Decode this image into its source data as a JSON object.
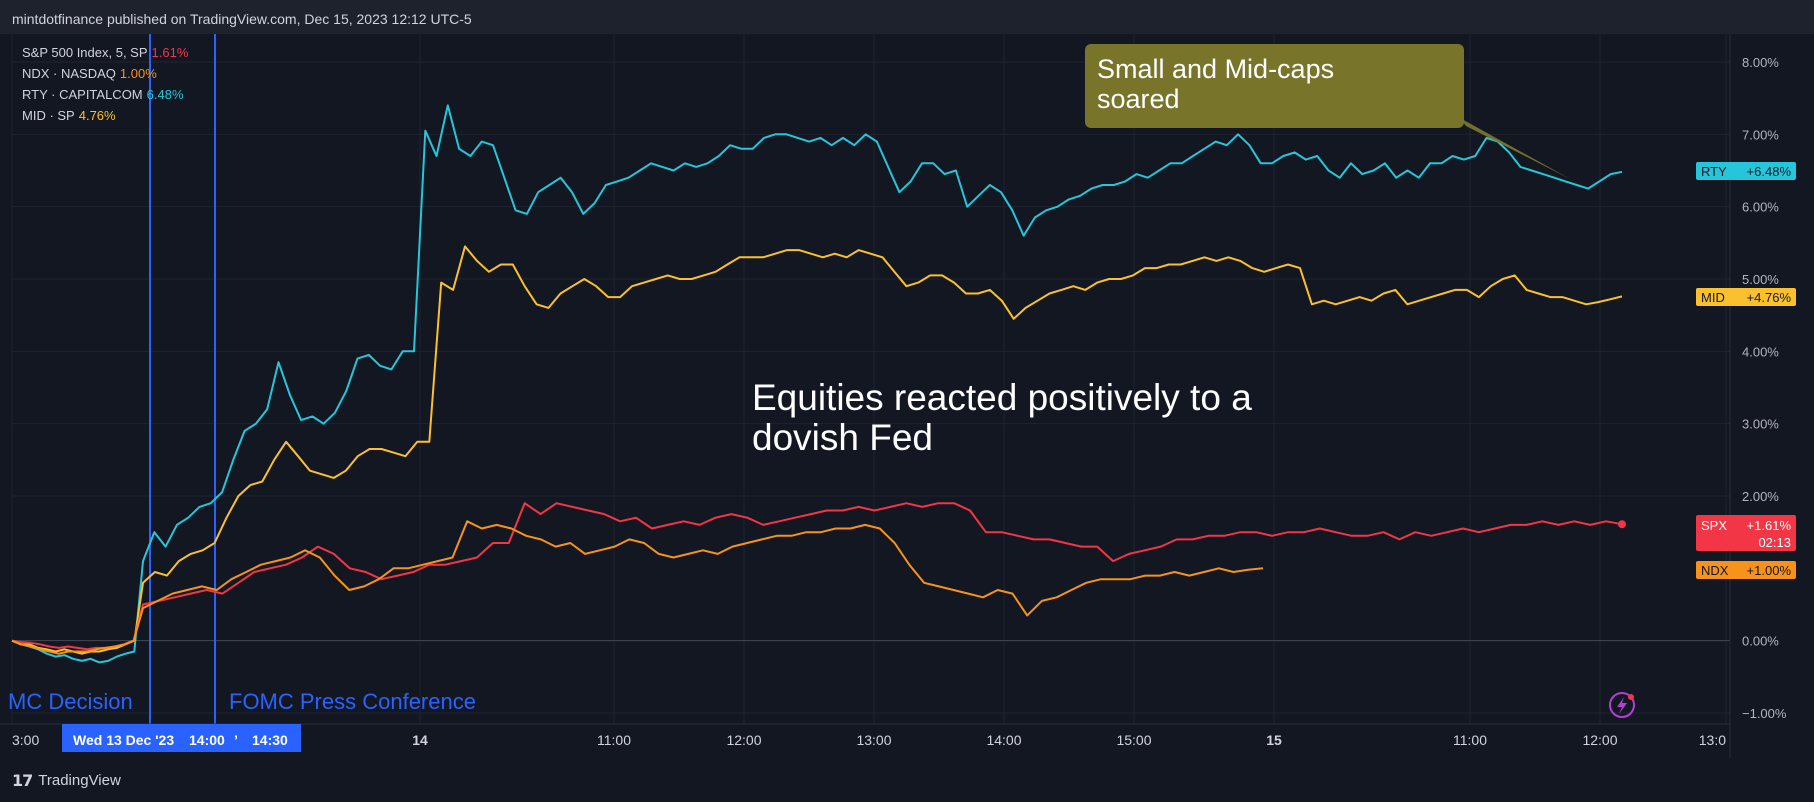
{
  "header": {
    "text": "mintdotfinance published on TradingView.com, Dec 15, 2023 12:12 UTC-5"
  },
  "footer": {
    "logo": "17",
    "name": "TradingView"
  },
  "legend": [
    {
      "label": "S&P 500 Index, 5, SP",
      "value": "1.61%",
      "color": "#f23645"
    },
    {
      "label": "NDX · NASDAQ",
      "value": "1.00%",
      "color": "#f7931a"
    },
    {
      "label": "RTY · CAPITALCOM",
      "value": "6.48%",
      "color": "#26c6da"
    },
    {
      "label": "MID · SP",
      "value": "4.76%",
      "color": "#fbc02d"
    }
  ],
  "annotations": {
    "soared_line1": "Small and Mid-caps",
    "soared_line2": "soared",
    "equities_line1": "Equities reacted positively to a",
    "equities_line2": "dovish Fed",
    "fomc_decision": "MC Decision",
    "fomc_press": "FOMC Press Conference"
  },
  "price_axis": {
    "ticks": [
      "8.00%",
      "7.00%",
      "6.00%",
      "5.00%",
      "4.00%",
      "3.00%",
      "2.00%",
      "0.00%",
      "−1.00%"
    ],
    "badges": {
      "rty": {
        "name": "RTY",
        "value": "+6.48%",
        "color": "#26c6da"
      },
      "mid": {
        "name": "MID",
        "value": "+4.76%",
        "color": "#fbc02d"
      },
      "spx": {
        "name": "SPX",
        "value": "+1.61%",
        "countdown": "02:13",
        "color": "#f23645"
      },
      "ndx": {
        "name": "NDX",
        "value": "+1.00%",
        "color": "#f7931a"
      }
    }
  },
  "time_axis": {
    "ticks": [
      "3:00",
      "14",
      "11:00",
      "12:00",
      "13:00",
      "14:00",
      "15:00",
      "15",
      "11:00",
      "12:00",
      "13:0"
    ],
    "bold_ticks": [
      "14",
      "15"
    ],
    "crosshair_date": "Wed 13 Dec '23",
    "crosshair_t1": "14:00",
    "crosshair_sep": "’",
    "crosshair_t2": "14:30"
  },
  "chart_data": {
    "type": "line",
    "ylabel": "",
    "ylim": [
      -1,
      8
    ],
    "y_ticks": [
      8,
      7,
      6,
      5,
      4,
      3,
      2,
      0,
      -1
    ],
    "series": [
      {
        "name": "RTY",
        "color": "#26c6da",
        "values": [
          0,
          -0.05,
          -0.08,
          -0.12,
          -0.18,
          -0.22,
          -0.2,
          -0.25,
          -0.28,
          -0.25,
          -0.3,
          -0.28,
          -0.22,
          -0.18,
          -0.15,
          1.1,
          1.5,
          1.3,
          1.6,
          1.7,
          1.85,
          1.9,
          2.05,
          2.5,
          2.9,
          3.0,
          3.2,
          3.85,
          3.4,
          3.05,
          3.1,
          3.0,
          3.15,
          3.45,
          3.9,
          3.95,
          3.8,
          3.75,
          4.0,
          4.0,
          7.05,
          6.7,
          7.4,
          6.8,
          6.7,
          6.9,
          6.85,
          6.4,
          5.95,
          5.9,
          6.2,
          6.3,
          6.4,
          6.2,
          5.9,
          6.05,
          6.3,
          6.35,
          6.4,
          6.5,
          6.6,
          6.55,
          6.5,
          6.6,
          6.55,
          6.6,
          6.7,
          6.85,
          6.8,
          6.8,
          6.95,
          7.0,
          7.0,
          6.95,
          6.9,
          6.95,
          6.85,
          6.95,
          6.85,
          7.0,
          6.9,
          6.55,
          6.2,
          6.35,
          6.6,
          6.6,
          6.45,
          6.5,
          6.0,
          6.15,
          6.3,
          6.2,
          5.95,
          5.6,
          5.85,
          5.95,
          6.0,
          6.1,
          6.15,
          6.25,
          6.3,
          6.3,
          6.35,
          6.45,
          6.4,
          6.5,
          6.6,
          6.6,
          6.7,
          6.8,
          6.9,
          6.85,
          7.0,
          6.85,
          6.6,
          6.6,
          6.7,
          6.75,
          6.65,
          6.7,
          6.5,
          6.4,
          6.6,
          6.45,
          6.5,
          6.6,
          6.4,
          6.5,
          6.4,
          6.6,
          6.6,
          6.7,
          6.65,
          6.7,
          6.95,
          6.9,
          6.75,
          6.55,
          6.5,
          6.45,
          6.4,
          6.35,
          6.3,
          6.25,
          6.35,
          6.45,
          6.48
        ]
      },
      {
        "name": "MID",
        "color": "#fbc02d",
        "values": [
          0,
          -0.05,
          -0.05,
          -0.1,
          -0.12,
          -0.15,
          -0.12,
          -0.15,
          -0.18,
          -0.15,
          -0.15,
          -0.12,
          -0.1,
          -0.05,
          0.0,
          0.8,
          0.95,
          0.9,
          1.1,
          1.2,
          1.25,
          1.35,
          1.7,
          2.0,
          2.15,
          2.2,
          2.5,
          2.75,
          2.55,
          2.35,
          2.3,
          2.25,
          2.35,
          2.55,
          2.65,
          2.65,
          2.6,
          2.55,
          2.75,
          2.75,
          4.95,
          4.85,
          5.45,
          5.25,
          5.1,
          5.2,
          5.2,
          4.9,
          4.65,
          4.6,
          4.8,
          4.9,
          5.0,
          4.9,
          4.75,
          4.75,
          4.9,
          4.95,
          5.0,
          5.05,
          5.0,
          5.0,
          5.05,
          5.1,
          5.2,
          5.3,
          5.3,
          5.3,
          5.35,
          5.4,
          5.4,
          5.35,
          5.3,
          5.35,
          5.3,
          5.4,
          5.35,
          5.3,
          5.1,
          4.9,
          4.95,
          5.05,
          5.05,
          4.95,
          4.8,
          4.8,
          4.85,
          4.7,
          4.45,
          4.6,
          4.7,
          4.8,
          4.85,
          4.9,
          4.85,
          4.95,
          5.0,
          5.0,
          5.05,
          5.15,
          5.15,
          5.2,
          5.2,
          5.25,
          5.3,
          5.25,
          5.3,
          5.25,
          5.15,
          5.1,
          5.15,
          5.2,
          5.15,
          4.65,
          4.7,
          4.65,
          4.7,
          4.75,
          4.7,
          4.8,
          4.85,
          4.65,
          4.7,
          4.75,
          4.8,
          4.85,
          4.85,
          4.75,
          4.9,
          5.0,
          5.05,
          4.85,
          4.8,
          4.75,
          4.75,
          4.7,
          4.65,
          4.68,
          4.72,
          4.76
        ]
      },
      {
        "name": "SPX",
        "color": "#f23645",
        "values": [
          0,
          -0.02,
          -0.03,
          -0.05,
          -0.08,
          -0.1,
          -0.08,
          -0.1,
          -0.12,
          -0.1,
          -0.1,
          -0.08,
          -0.05,
          0.0,
          0.5,
          0.55,
          0.6,
          0.65,
          0.7,
          0.65,
          0.8,
          0.95,
          1.0,
          1.05,
          1.15,
          1.3,
          1.2,
          1.0,
          0.95,
          0.85,
          0.9,
          0.95,
          1.05,
          1.05,
          1.1,
          1.15,
          1.35,
          1.35,
          1.9,
          1.75,
          1.9,
          1.85,
          1.8,
          1.75,
          1.65,
          1.7,
          1.55,
          1.6,
          1.65,
          1.6,
          1.7,
          1.75,
          1.7,
          1.6,
          1.65,
          1.7,
          1.75,
          1.8,
          1.8,
          1.85,
          1.8,
          1.85,
          1.9,
          1.85,
          1.9,
          1.9,
          1.8,
          1.5,
          1.5,
          1.45,
          1.4,
          1.4,
          1.35,
          1.3,
          1.3,
          1.1,
          1.2,
          1.25,
          1.3,
          1.4,
          1.4,
          1.45,
          1.45,
          1.5,
          1.5,
          1.45,
          1.5,
          1.5,
          1.55,
          1.5,
          1.45,
          1.45,
          1.5,
          1.4,
          1.5,
          1.45,
          1.5,
          1.55,
          1.5,
          1.55,
          1.6,
          1.6,
          1.65,
          1.6,
          1.65,
          1.6,
          1.65,
          1.61
        ]
      },
      {
        "name": "NDX",
        "color": "#f7931a",
        "values": [
          0,
          -0.05,
          -0.08,
          -0.12,
          -0.15,
          -0.18,
          -0.15,
          -0.15,
          -0.15,
          -0.12,
          -0.1,
          -0.08,
          -0.05,
          0.0,
          0.45,
          0.55,
          0.65,
          0.7,
          0.75,
          0.7,
          0.85,
          0.95,
          1.05,
          1.1,
          1.15,
          1.25,
          1.15,
          0.9,
          0.7,
          0.75,
          0.85,
          1.0,
          1.0,
          1.05,
          1.1,
          1.15,
          1.65,
          1.55,
          1.6,
          1.55,
          1.45,
          1.4,
          1.3,
          1.35,
          1.2,
          1.25,
          1.3,
          1.4,
          1.35,
          1.2,
          1.15,
          1.2,
          1.25,
          1.2,
          1.3,
          1.35,
          1.4,
          1.45,
          1.45,
          1.5,
          1.5,
          1.55,
          1.55,
          1.6,
          1.55,
          1.35,
          1.05,
          0.8,
          0.75,
          0.7,
          0.65,
          0.6,
          0.7,
          0.65,
          0.35,
          0.55,
          0.6,
          0.7,
          0.8,
          0.85,
          0.85,
          0.85,
          0.9,
          0.9,
          0.95,
          0.9,
          0.95,
          1.0,
          0.95,
          0.98,
          1.0
        ]
      }
    ]
  }
}
